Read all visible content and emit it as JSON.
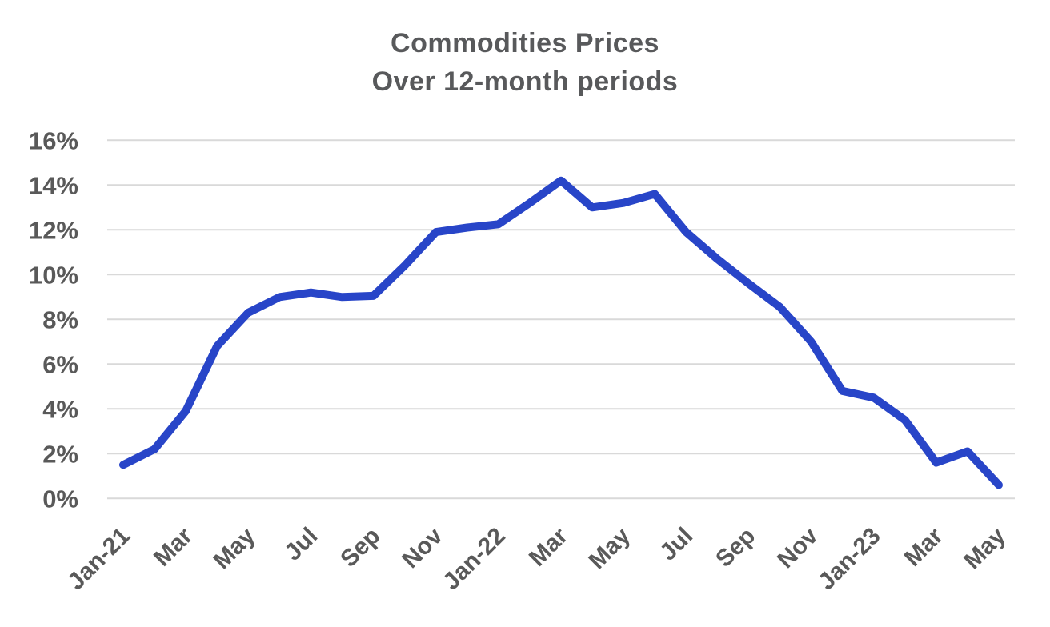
{
  "title": {
    "line1": "Commodities Prices",
    "line2": "Over 12-month periods"
  },
  "colors": {
    "line": "#2845c8",
    "grid": "#d9d9d9",
    "title_text": "#58595b",
    "tick_text": "#595959",
    "background": "#ffffff"
  },
  "chart_data": {
    "type": "line",
    "title": "Commodities Prices Over 12-month periods",
    "x": [
      "Jan-21",
      "Feb-21",
      "Mar-21",
      "Apr-21",
      "May-21",
      "Jun-21",
      "Jul-21",
      "Aug-21",
      "Sep-21",
      "Oct-21",
      "Nov-21",
      "Dec-21",
      "Jan-22",
      "Feb-22",
      "Mar-22",
      "Apr-22",
      "May-22",
      "Jun-22",
      "Jul-22",
      "Aug-22",
      "Sep-22",
      "Oct-22",
      "Nov-22",
      "Dec-22",
      "Jan-23",
      "Feb-23",
      "Mar-23",
      "Apr-23",
      "May-23"
    ],
    "values_pct": [
      1.5,
      2.2,
      3.9,
      6.8,
      8.3,
      9.0,
      9.2,
      9.0,
      9.05,
      10.4,
      11.9,
      12.1,
      12.25,
      13.2,
      14.2,
      13.0,
      13.2,
      13.6,
      11.9,
      10.7,
      9.6,
      8.55,
      7.0,
      4.8,
      4.5,
      3.5,
      1.6,
      2.1,
      0.6
    ],
    "x_tick_labels": [
      "Jan-21",
      "Mar",
      "May",
      "Jul",
      "Sep",
      "Nov",
      "Jan-22",
      "Mar",
      "May",
      "Jul",
      "Sep",
      "Nov",
      "Jan-23",
      "Mar",
      "May"
    ],
    "x_tick_every": 2,
    "y_ticks": [
      "16%",
      "14%",
      "12%",
      "10%",
      "8%",
      "6%",
      "4%",
      "2%",
      "0%"
    ],
    "ylim": [
      0,
      16
    ],
    "y_step": 2,
    "grid": "horizontal",
    "legend": "none",
    "line_width": 10
  }
}
